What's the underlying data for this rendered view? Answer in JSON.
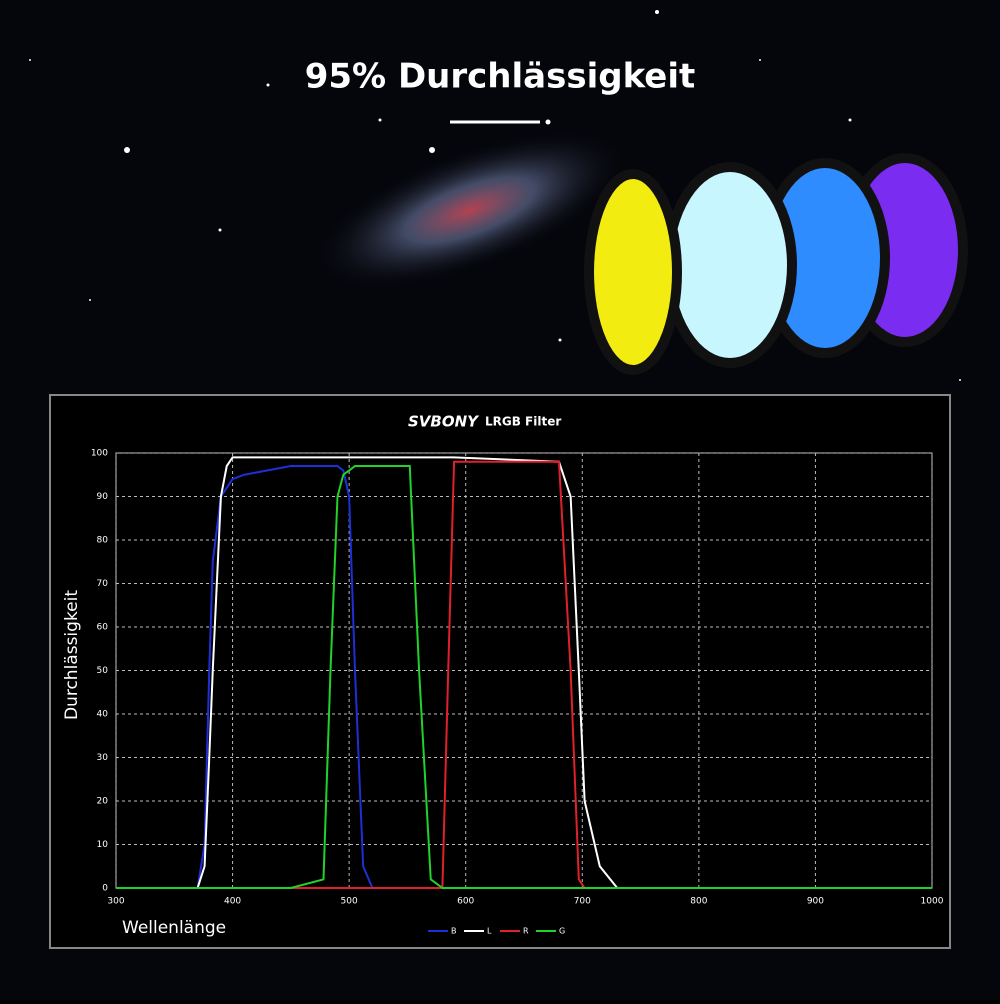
{
  "headline": "95% Durchlässigkeit",
  "chart_data": {
    "type": "line",
    "brand": "SVBONY",
    "title": "LRGB Filter",
    "x_label": "Wellenlänge",
    "y_label": "Durchlässigkeit",
    "x": [
      300,
      370,
      376,
      380,
      383,
      390,
      395,
      400,
      410,
      450,
      478,
      484,
      490,
      495,
      500,
      505,
      512,
      520,
      552,
      560,
      570,
      580,
      585,
      590,
      680,
      690,
      697,
      702,
      715,
      730,
      1000
    ],
    "series": [
      {
        "name": "B",
        "color": "#1f2fd8",
        "values": [
          0,
          0,
          10,
          50,
          75,
          90,
          92,
          94,
          95,
          97,
          97,
          97,
          97,
          96,
          90,
          50,
          5,
          0,
          0,
          0,
          0,
          0,
          0,
          0,
          0,
          0,
          0,
          0,
          0,
          0,
          0
        ]
      },
      {
        "name": "L",
        "color": "#ffffff",
        "values": [
          0,
          0,
          5,
          30,
          50,
          90,
          97,
          99,
          99,
          99,
          99,
          99,
          99,
          99,
          99,
          99,
          99,
          99,
          99,
          99,
          99,
          99,
          99,
          99,
          98,
          90,
          50,
          20,
          5,
          0,
          0
        ]
      },
      {
        "name": "R",
        "color": "#e0202a",
        "values": [
          0,
          0,
          0,
          0,
          0,
          0,
          0,
          0,
          0,
          0,
          0,
          0,
          0,
          0,
          0,
          0,
          0,
          0,
          0,
          0,
          0,
          0,
          50,
          98,
          98,
          50,
          2,
          0,
          0,
          0,
          0
        ]
      },
      {
        "name": "G",
        "color": "#22d22a",
        "values": [
          0,
          0,
          0,
          0,
          0,
          0,
          0,
          0,
          0,
          0,
          2,
          50,
          90,
          95,
          96,
          97,
          97,
          97,
          97,
          50,
          2,
          0,
          0,
          0,
          0,
          0,
          0,
          0,
          0,
          0,
          0
        ]
      }
    ],
    "xlim": [
      300,
      1000
    ],
    "xticks": [
      300,
      400,
      500,
      600,
      700,
      800,
      900,
      1000
    ],
    "ylim": [
      0,
      100
    ],
    "yticks": [
      0,
      10,
      20,
      30,
      40,
      50,
      60,
      70,
      80,
      90,
      100
    ],
    "grid": true
  }
}
